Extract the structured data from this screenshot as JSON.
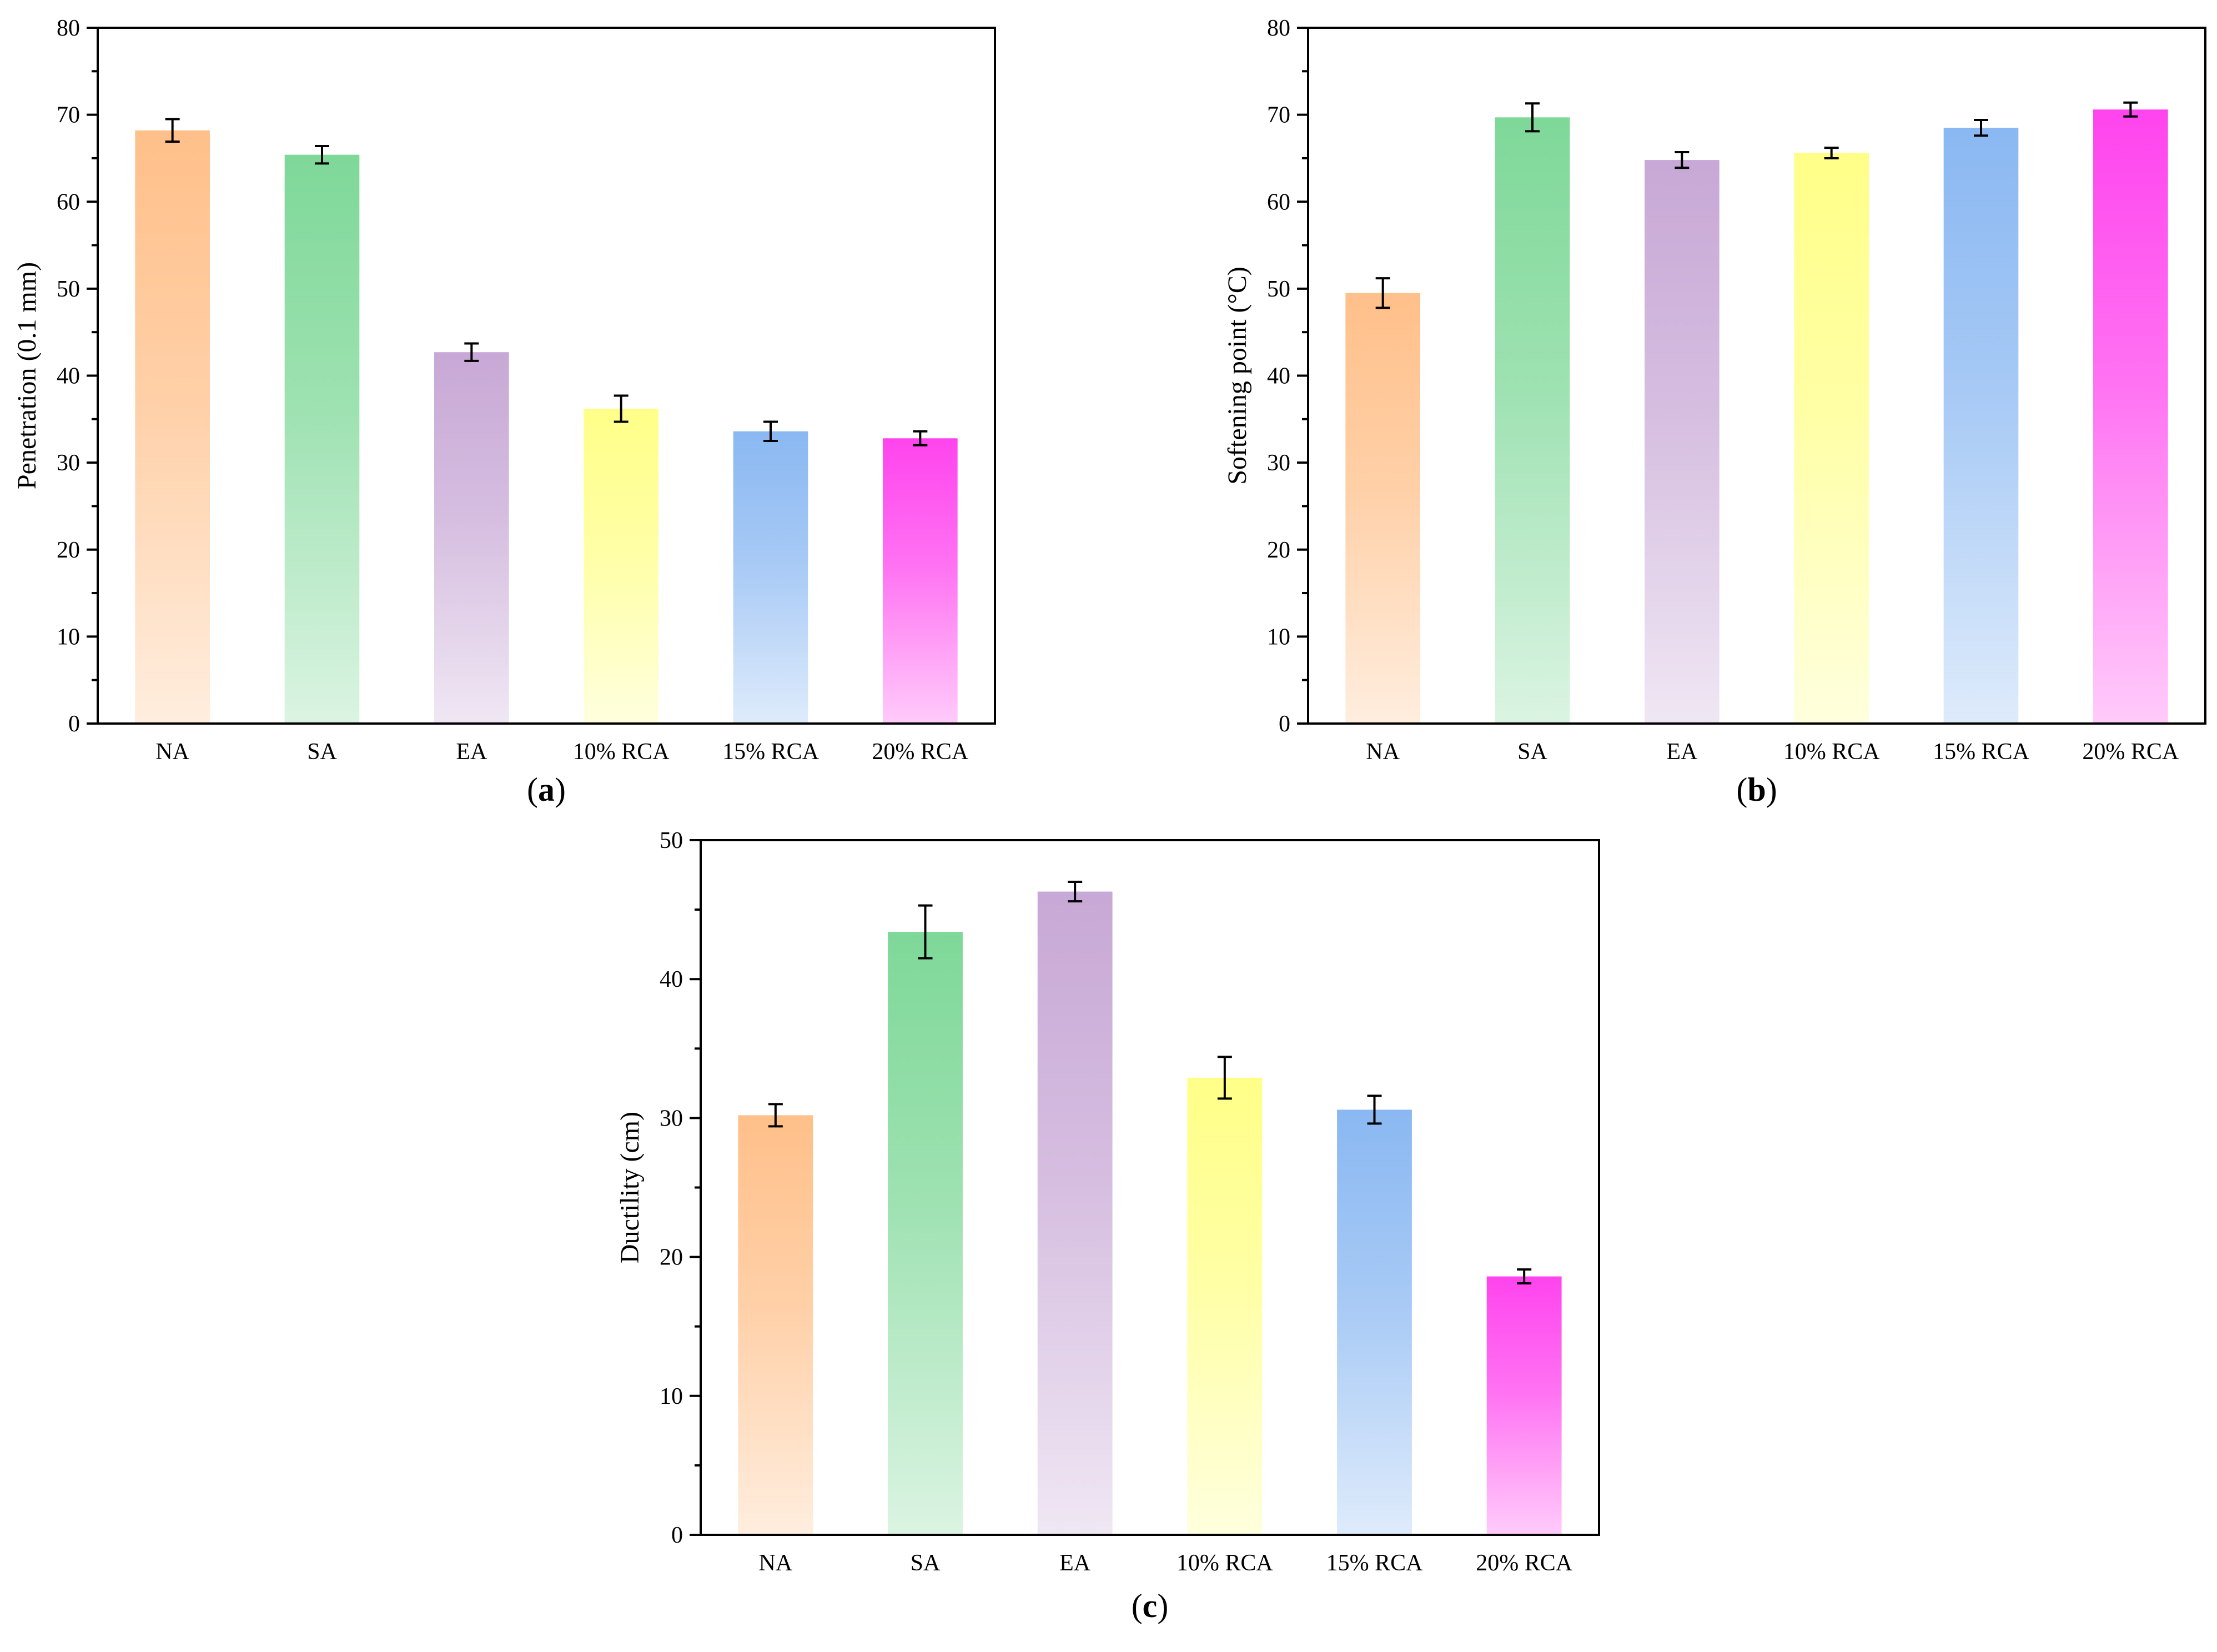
{
  "chart_data": [
    {
      "id": "a",
      "type": "bar",
      "panel_label": "a",
      "categories": [
        "NA",
        "SA",
        "EA",
        "10% RCA",
        "15% RCA",
        "20% RCA"
      ],
      "values": [
        68.2,
        65.4,
        42.7,
        36.2,
        33.6,
        32.8
      ],
      "errors": [
        1.3,
        1.0,
        1.0,
        1.5,
        1.1,
        0.8
      ],
      "ylabel": "Penetration  (0.1 mm)",
      "xlabel": "",
      "ylim": [
        0,
        80
      ],
      "yticks": [
        0,
        10,
        20,
        30,
        40,
        50,
        60,
        70,
        80
      ],
      "grid": false
    },
    {
      "id": "b",
      "type": "bar",
      "panel_label": "b",
      "categories": [
        "NA",
        "SA",
        "EA",
        "10% RCA",
        "15% RCA",
        "20% RCA"
      ],
      "values": [
        49.5,
        69.7,
        64.8,
        65.6,
        68.5,
        70.6
      ],
      "errors": [
        1.7,
        1.6,
        0.9,
        0.6,
        0.9,
        0.8
      ],
      "ylabel": "Softening point (°C)",
      "xlabel": "",
      "ylim": [
        0,
        80
      ],
      "yticks": [
        0,
        10,
        20,
        30,
        40,
        50,
        60,
        70,
        80
      ],
      "grid": false
    },
    {
      "id": "c",
      "type": "bar",
      "panel_label": "c",
      "categories": [
        "NA",
        "SA",
        "EA",
        "10% RCA",
        "15% RCA",
        "20% RCA"
      ],
      "values": [
        30.2,
        43.4,
        46.3,
        32.9,
        30.6,
        18.6
      ],
      "errors": [
        0.8,
        1.9,
        0.7,
        1.5,
        1.0,
        0.5
      ],
      "ylabel": "Ductility (cm)",
      "xlabel": "",
      "ylim": [
        0,
        50
      ],
      "yticks": [
        0,
        10,
        20,
        30,
        40,
        50
      ],
      "grid": false
    }
  ],
  "colors": {
    "NA": "#ffc08a",
    "SA": "#7ed898",
    "EA": "#c8a8d6",
    "10% RCA": "#ffff88",
    "15% RCA": "#8ab8f2",
    "20% RCA": "#ff44ee"
  },
  "figure_colors": [
    "#ffc08a",
    "#7ed898",
    "#c8a8d6",
    "#ffff88",
    "#8ab8f2",
    "#ff44ee"
  ]
}
